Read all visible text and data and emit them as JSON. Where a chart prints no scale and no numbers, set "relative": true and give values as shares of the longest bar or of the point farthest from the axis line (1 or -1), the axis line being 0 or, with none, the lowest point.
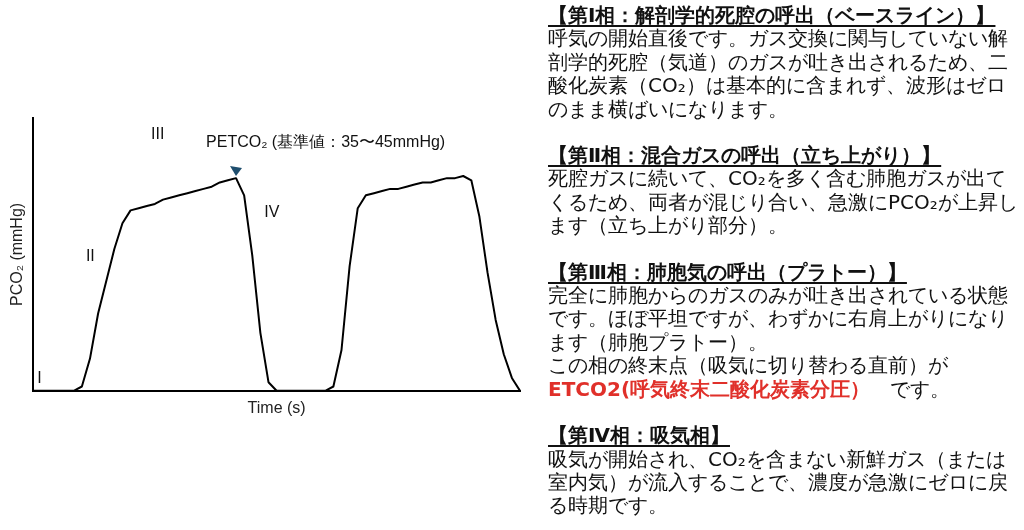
{
  "chart_data": [
    {
      "type": "line",
      "relative": true,
      "xlabel": "Time (s)",
      "ylabel": "PCO₂ (mmHg)",
      "color": "#000000",
      "marker": "none",
      "grid": false,
      "legend": false,
      "categories": [
        null,
        null,
        null,
        null,
        null,
        null,
        null,
        null,
        null,
        null,
        null,
        null,
        null,
        null,
        null,
        null,
        null,
        null,
        null,
        null,
        null,
        null,
        null,
        null,
        null,
        null,
        null,
        null,
        null,
        null,
        null,
        null,
        null,
        null,
        null,
        null,
        null,
        null,
        null,
        null,
        null,
        null,
        null,
        null,
        null,
        null,
        null,
        null,
        null,
        null,
        null,
        null,
        null,
        null,
        null,
        null,
        null,
        null,
        null,
        null,
        null
      ],
      "values": [
        0,
        0,
        0,
        0,
        0,
        0,
        0.02,
        0.15,
        0.36,
        0.51,
        0.66,
        0.78,
        0.84,
        0.85,
        0.86,
        0.87,
        0.89,
        0.9,
        0.91,
        0.92,
        0.93,
        0.94,
        0.95,
        0.97,
        0.98,
        0.99,
        0.91,
        0.63,
        0.27,
        0.04,
        0,
        0,
        0,
        0,
        0,
        0,
        0,
        0.02,
        0.19,
        0.58,
        0.85,
        0.91,
        0.92,
        0.93,
        0.94,
        0.94,
        0.95,
        0.96,
        0.97,
        0.97,
        0.98,
        0.99,
        0.99,
        1,
        0.98,
        0.81,
        0.55,
        0.33,
        0.17,
        0.06,
        0
      ],
      "annotations": [
        "I",
        "II",
        "III",
        "IV",
        "PETCO₂ (基準値：35〜45mmHg)"
      ]
    },
    {
      "type": "other",
      "annotations": [
        "【第Ⅰ相：解剖学的死腔の呼出（ベースライン）】",
        "呼気の開始直後です。ガス交換に関与していない解剖学的死腔（気道）のガスが吐き出されるため、二酸化炭素（CO₂）は基本的に含まれず、波形はゼロのまま横ばいになります。",
        "【第Ⅱ相：混合ガスの呼出（立ち上がり）】",
        "死腔ガスに続いて、CO₂を多く含む肺胞ガスが出てくるため、両者が混じり合い、急激にPCO₂が上昇します（立ち上がり部分）。",
        "【第Ⅲ相：肺胞気の呼出（プラトー）】",
        "完全に肺胞からのガスのみが吐き出されている状態です。ほぼ平坦ですが、わずかに右肩上がりになります（肺胞プラトー）。",
        "この相の終末点（吸気に切り替わる直前）が",
        "ETCO2(呼気終末二酸化炭素分圧）",
        "です。",
        "【第Ⅳ相：吸気相】",
        "吸気が開始され、CO₂を含まない新鮮ガス（または室内気）が流入することで、濃度が急激にゼロに戻る時期です。"
      ]
    }
  ]
}
